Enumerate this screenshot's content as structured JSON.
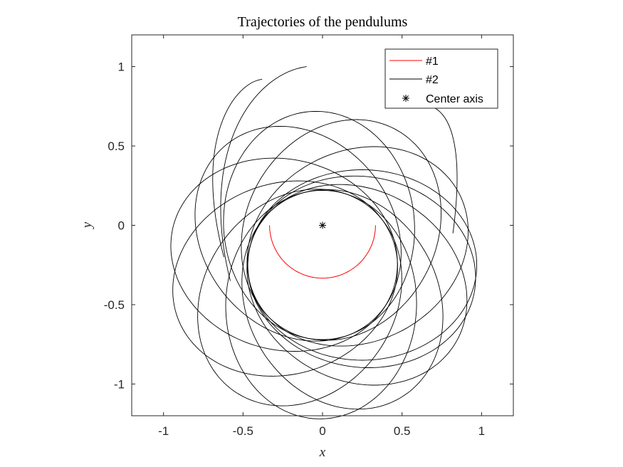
{
  "chart_data": {
    "type": "line",
    "title": "Trajectories of the pendulums",
    "xlabel": "x",
    "ylabel": "y",
    "xlim": [
      -1.2,
      1.2
    ],
    "ylim": [
      -1.2,
      1.2
    ],
    "xticks": [
      -1,
      -0.5,
      0,
      0.5,
      1
    ],
    "xtick_labels": [
      "-1",
      "-0.5",
      "0",
      "0.5",
      "1"
    ],
    "yticks": [
      -1,
      -0.5,
      0,
      0.5,
      1
    ],
    "ytick_labels": [
      "-1",
      "-0.5",
      "0",
      "0.5",
      "1"
    ],
    "grid": false,
    "legend_position": "top-right",
    "series": [
      {
        "name": "#1",
        "color": "#ff0000",
        "kind": "arc",
        "radius": 0.333,
        "start_angle_deg": 0,
        "end_angle_deg": 180,
        "direction": "below"
      },
      {
        "name": "#2",
        "color": "#000000",
        "kind": "loops",
        "ellipse_a": 0.72,
        "ellipse_b": 0.6,
        "ellipse_center_offset": 0.25,
        "loop_rotations_deg": [
          0,
          28,
          62,
          95,
          128,
          165,
          200,
          235,
          268,
          300,
          330,
          350
        ],
        "tail_ends": [
          {
            "x": -0.1,
            "y": 1.0
          },
          {
            "x": -0.38,
            "y": 0.92
          },
          {
            "x": 0.68,
            "y": 0.75
          }
        ]
      }
    ],
    "markers": [
      {
        "name": "Center axis",
        "x": 0,
        "y": 0,
        "symbol": "*",
        "color": "#000000"
      }
    ]
  }
}
